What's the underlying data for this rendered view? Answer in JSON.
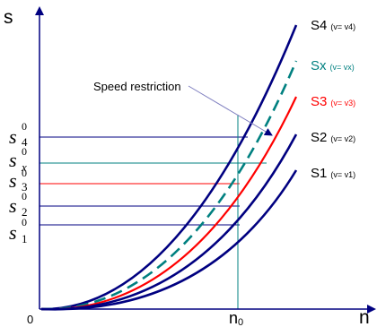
{
  "axes": {
    "y_label": "s",
    "x_label": "n",
    "origin_label": "0",
    "n0_label": "n",
    "n0_sub": "0"
  },
  "callout": {
    "text": "Speed restriction"
  },
  "s0_labels": [
    {
      "letter": "s",
      "sub": "4",
      "sup": "0"
    },
    {
      "letter": "s",
      "sub": "x",
      "sup": "0"
    },
    {
      "letter": "s",
      "sub": "3",
      "sup": "0"
    },
    {
      "letter": "s",
      "sub": "2",
      "sup": "0"
    },
    {
      "letter": "s",
      "sub": "1",
      "sup": "0"
    }
  ],
  "curves": [
    {
      "id": "s4",
      "name": "S",
      "sub": "4",
      "note": "(v= v4)",
      "color": "#000080",
      "dashed": false
    },
    {
      "id": "sx",
      "name": "S",
      "sub": "x",
      "note": "(v= vx)",
      "color": "#008080",
      "dashed": true
    },
    {
      "id": "s3",
      "name": "S",
      "sub": "3",
      "note": "(v= v3)",
      "color": "#ff0000",
      "dashed": false
    },
    {
      "id": "s2",
      "name": "S",
      "sub": "2",
      "note": "(v= v2)",
      "color": "#000080",
      "dashed": false
    },
    {
      "id": "s1",
      "name": "S",
      "sub": "1",
      "note": "(v= v1)",
      "color": "#000080",
      "dashed": false
    }
  ],
  "colors": {
    "axis": "#000080",
    "guide_teal": "#008080",
    "guide_red": "#ff0000",
    "guide_navy": "#000080",
    "callout_line": "#8080c0"
  }
}
